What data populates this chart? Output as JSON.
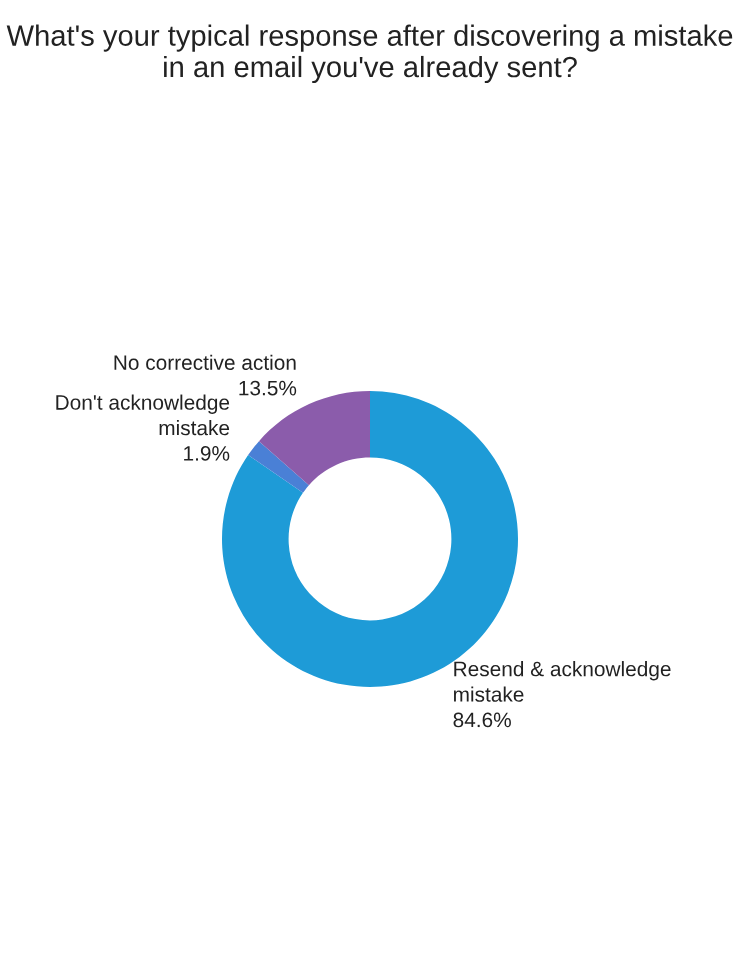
{
  "chart_data": {
    "type": "donut",
    "title": "What's your typical response after discovering a mistake in an email you've already sent?",
    "categories": [
      "Resend & acknowledge mistake",
      "Don't acknowledge mistake",
      "No corrective action"
    ],
    "values": [
      84.6,
      1.9,
      13.5
    ],
    "colors": [
      "#1e9bd7",
      "#4a80d6",
      "#8b5cab"
    ],
    "value_labels": [
      "84.6%",
      "1.9%",
      "13.5%"
    ]
  }
}
